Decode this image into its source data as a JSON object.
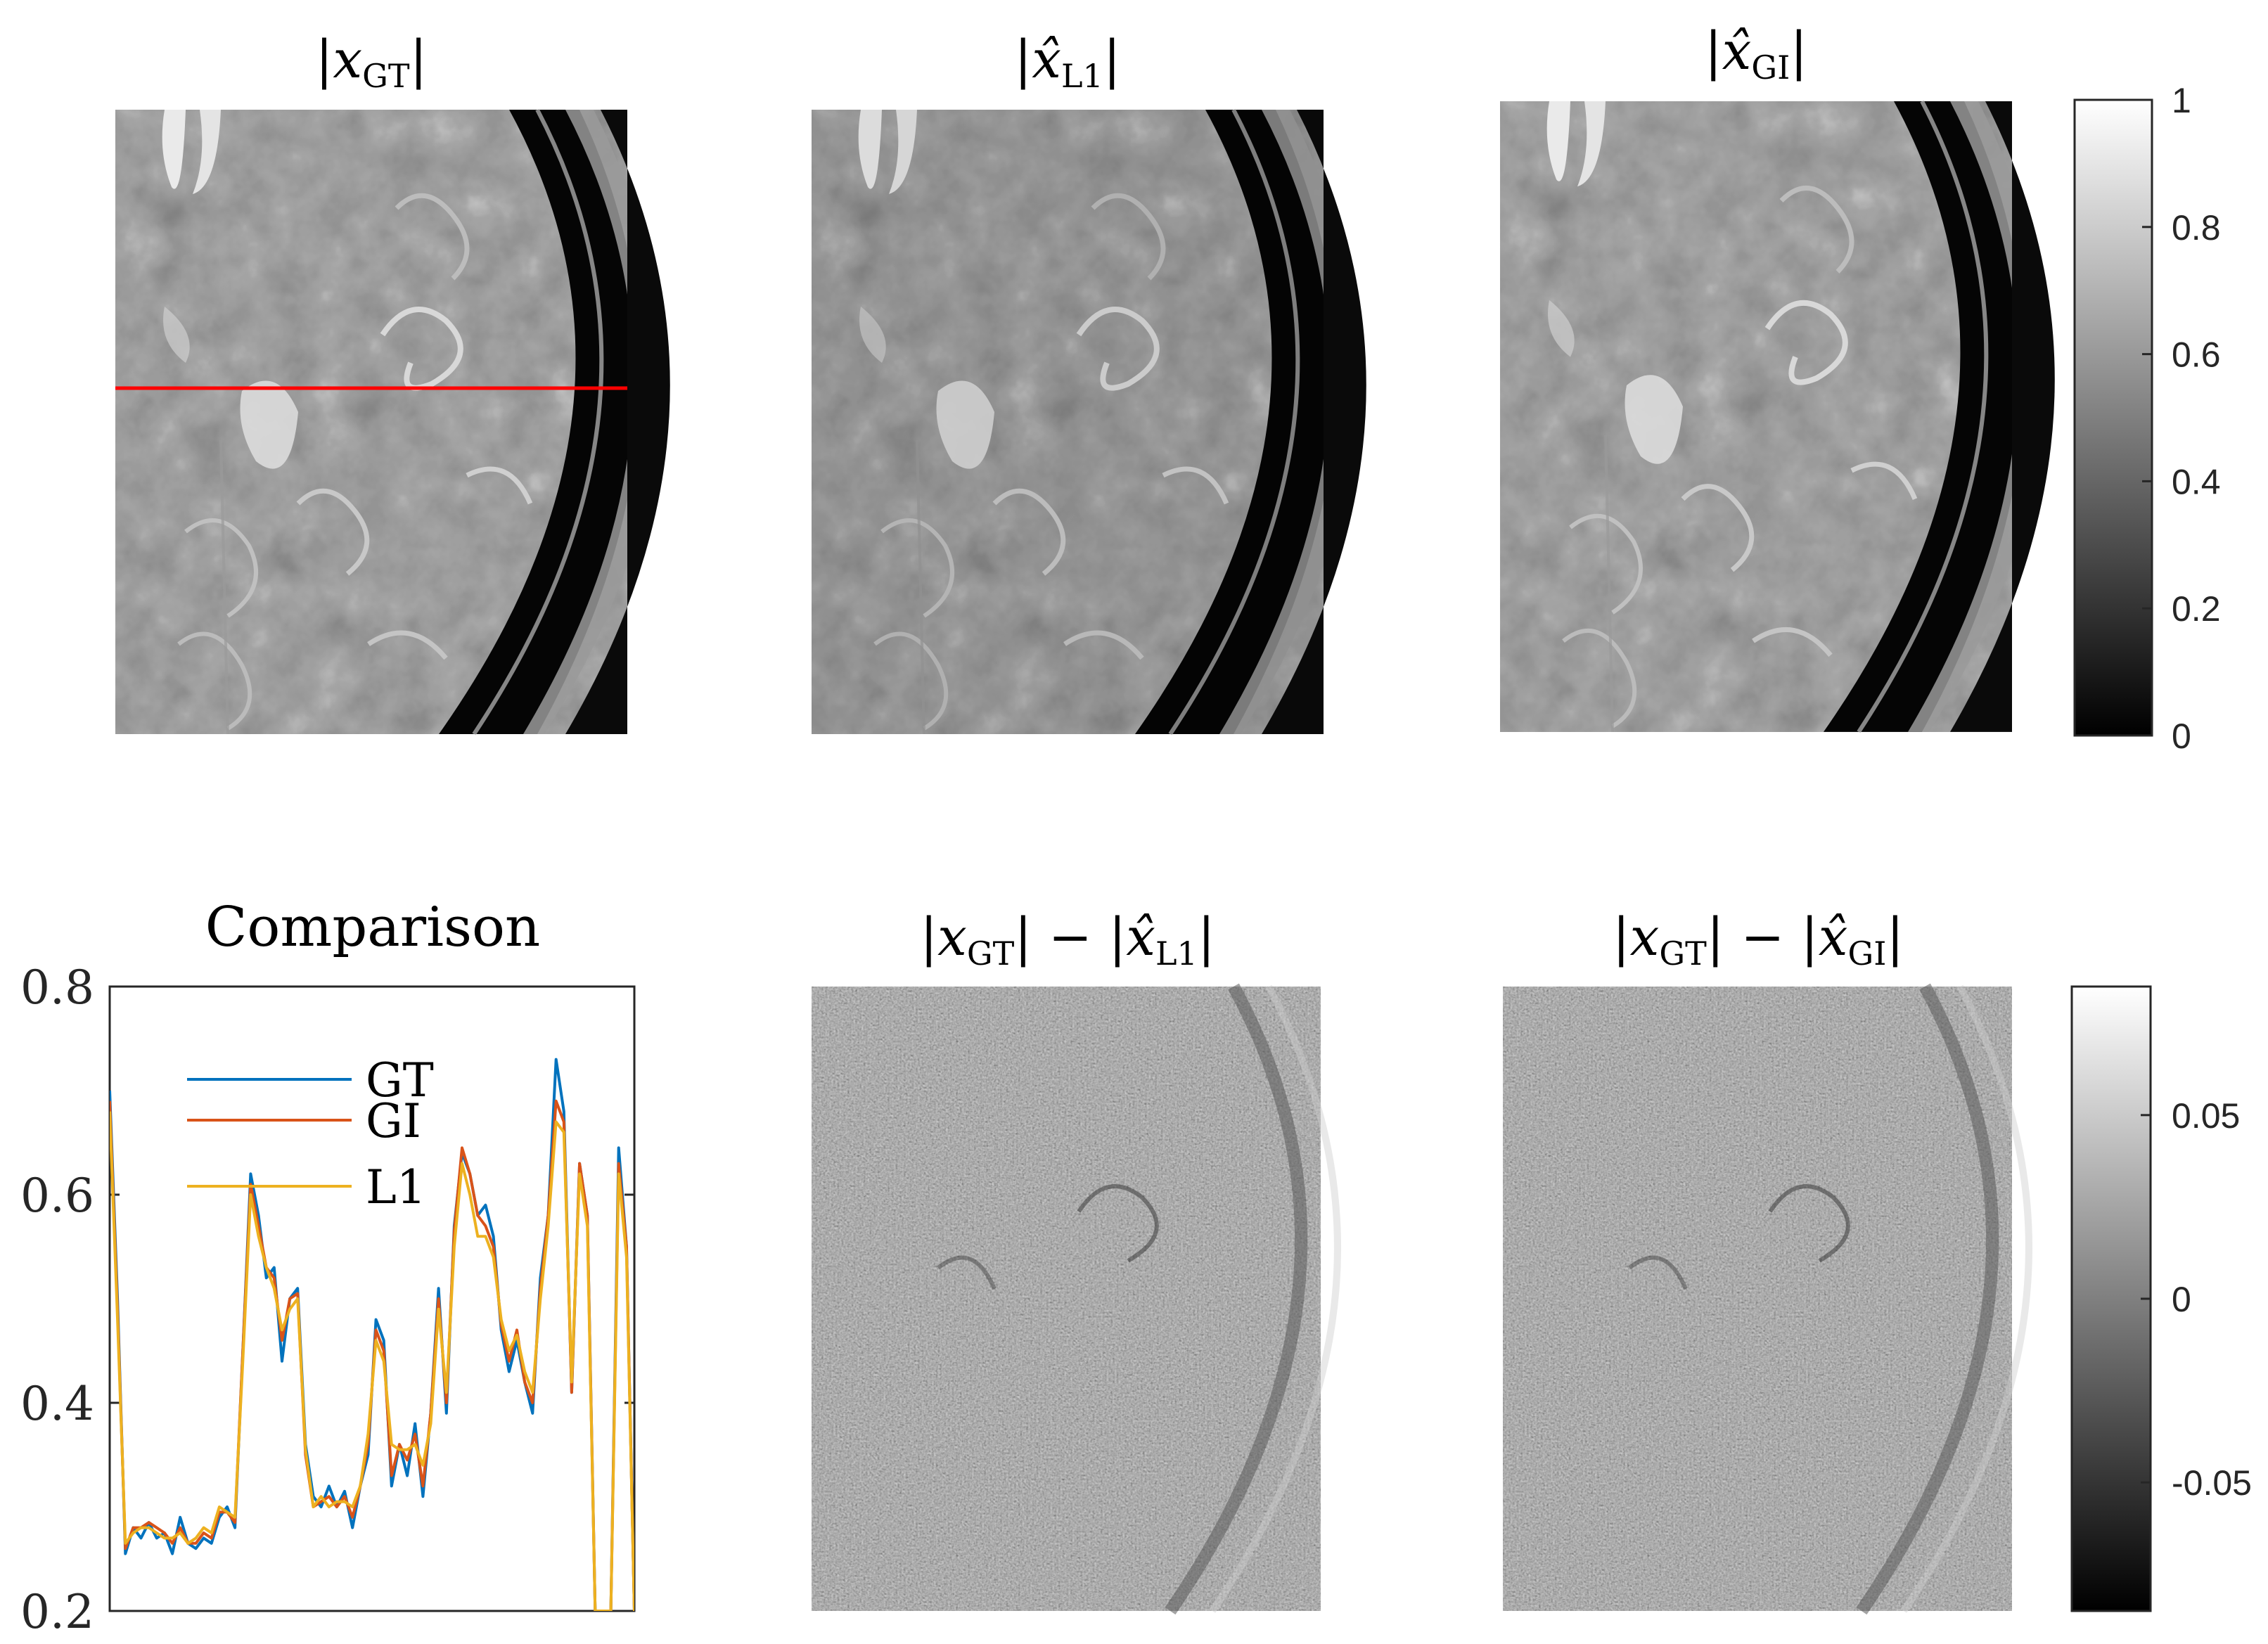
{
  "panels": {
    "gt": {
      "title_main": "|x",
      "title_sub": "GT",
      "title_end": "|"
    },
    "l1": {
      "title_main": "|x̂",
      "title_sub": "L1",
      "title_end": "|"
    },
    "gi": {
      "title_main": "|x̂",
      "title_sub": "GI",
      "title_end": "|"
    },
    "diff_l1": {
      "title_a": "|x",
      "title_a_sub": "GT",
      "title_mid": "| − |x̂",
      "title_b_sub": "L1",
      "title_end": "|"
    },
    "diff_gi": {
      "title_a": "|x",
      "title_a_sub": "GT",
      "title_mid": "| − |x̂",
      "title_b_sub": "GI",
      "title_end": "|"
    }
  },
  "colorbar_top": {
    "ticks": [
      "1",
      "0.8",
      "0.6",
      "0.4",
      "0.2",
      "0"
    ],
    "range": [
      0,
      1
    ]
  },
  "colorbar_bottom": {
    "ticks": [
      "0.05",
      "0",
      "-0.05"
    ],
    "range": [
      -0.085,
      0.085
    ]
  },
  "colors": {
    "gt": "#0072BD",
    "gi": "#D95319",
    "l1": "#EDB120",
    "profile_line": "#ff0000"
  },
  "chart_data": {
    "type": "line",
    "title": "Comparison",
    "ylim": [
      0.2,
      0.8
    ],
    "yticks": [
      "0.8",
      "0.6",
      "0.4",
      "0.2"
    ],
    "legend": [
      "GT",
      "GI",
      "L1"
    ],
    "legend_position": "top-left",
    "series": [
      {
        "name": "GT",
        "values": [
          0.7,
          0.5,
          0.255,
          0.28,
          0.27,
          0.285,
          0.27,
          0.275,
          0.255,
          0.29,
          0.265,
          0.26,
          0.27,
          0.265,
          0.29,
          0.3,
          0.28,
          0.45,
          0.62,
          0.58,
          0.52,
          0.53,
          0.44,
          0.5,
          0.51,
          0.36,
          0.31,
          0.3,
          0.32,
          0.3,
          0.315,
          0.28,
          0.32,
          0.35,
          0.48,
          0.46,
          0.32,
          0.36,
          0.33,
          0.38,
          0.31,
          0.39,
          0.51,
          0.39,
          0.57,
          0.64,
          0.62,
          0.58,
          0.59,
          0.56,
          0.47,
          0.43,
          0.46,
          0.42,
          0.39,
          0.52,
          0.58,
          0.73,
          0.68,
          0.41,
          0.63,
          0.58,
          0.2,
          0.2,
          0.2,
          0.645,
          0.55,
          0.2
        ]
      },
      {
        "name": "GI",
        "values": [
          0.69,
          0.49,
          0.26,
          0.28,
          0.28,
          0.285,
          0.28,
          0.275,
          0.265,
          0.28,
          0.265,
          0.265,
          0.275,
          0.27,
          0.295,
          0.295,
          0.285,
          0.45,
          0.61,
          0.57,
          0.53,
          0.52,
          0.46,
          0.5,
          0.505,
          0.35,
          0.3,
          0.305,
          0.31,
          0.3,
          0.31,
          0.29,
          0.32,
          0.36,
          0.47,
          0.45,
          0.33,
          0.36,
          0.345,
          0.37,
          0.32,
          0.39,
          0.5,
          0.4,
          0.565,
          0.645,
          0.62,
          0.58,
          0.57,
          0.55,
          0.475,
          0.44,
          0.47,
          0.42,
          0.4,
          0.51,
          0.58,
          0.69,
          0.67,
          0.41,
          0.63,
          0.58,
          0.2,
          0.2,
          0.2,
          0.63,
          0.55,
          0.2
        ]
      },
      {
        "name": "L1",
        "values": [
          0.68,
          0.48,
          0.265,
          0.275,
          0.28,
          0.28,
          0.275,
          0.27,
          0.27,
          0.275,
          0.265,
          0.27,
          0.28,
          0.275,
          0.3,
          0.295,
          0.29,
          0.44,
          0.6,
          0.56,
          0.53,
          0.51,
          0.47,
          0.49,
          0.5,
          0.355,
          0.3,
          0.31,
          0.3,
          0.305,
          0.305,
          0.3,
          0.32,
          0.37,
          0.46,
          0.44,
          0.36,
          0.355,
          0.355,
          0.36,
          0.34,
          0.38,
          0.49,
          0.41,
          0.55,
          0.63,
          0.6,
          0.56,
          0.56,
          0.54,
          0.48,
          0.45,
          0.465,
          0.43,
          0.41,
          0.5,
          0.57,
          0.67,
          0.66,
          0.42,
          0.62,
          0.57,
          0.2,
          0.2,
          0.2,
          0.62,
          0.54,
          0.2
        ]
      }
    ]
  }
}
